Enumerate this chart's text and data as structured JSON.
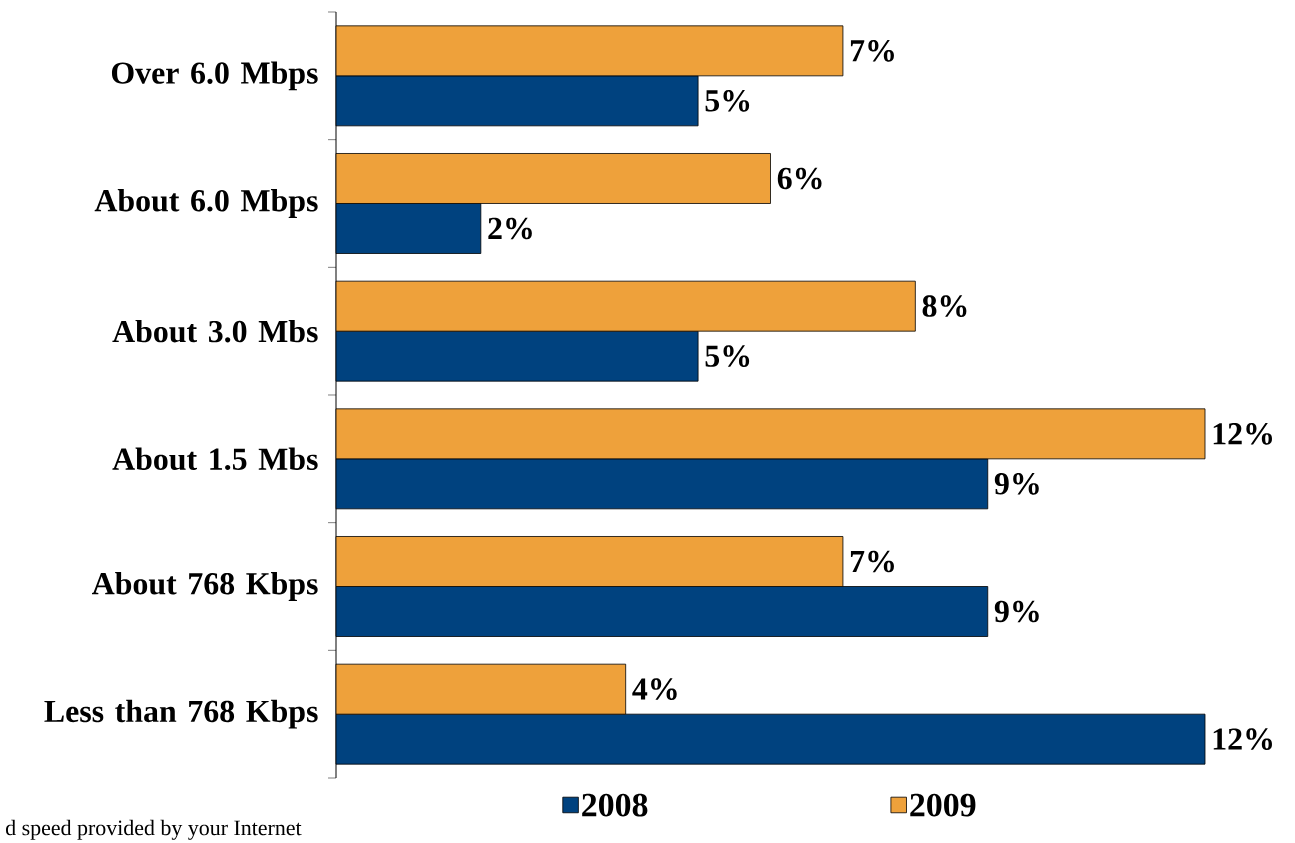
{
  "chart_data": {
    "type": "bar",
    "orientation": "horizontal",
    "categories": [
      "Over 6.0 Mbps",
      "About 6.0 Mbps",
      "About 3.0 Mbs",
      "About 1.5 Mbs",
      "About 768 Kbps",
      "Less than 768 Kbps"
    ],
    "series": [
      {
        "name": "2008",
        "color": "#00427f",
        "values": [
          5,
          2,
          5,
          9,
          9,
          12
        ],
        "value_labels": [
          "5%",
          "2%",
          "5%",
          "9%",
          "9%",
          "12%"
        ]
      },
      {
        "name": "2009",
        "color": "#eea13b",
        "values": [
          7,
          6,
          8,
          12,
          7,
          4
        ],
        "value_labels": [
          "7%",
          "6%",
          "8%",
          "12%",
          "7%",
          "4%"
        ]
      }
    ],
    "legend": "bottom",
    "annotations": [
      "d speed provided by your Internet"
    ]
  }
}
